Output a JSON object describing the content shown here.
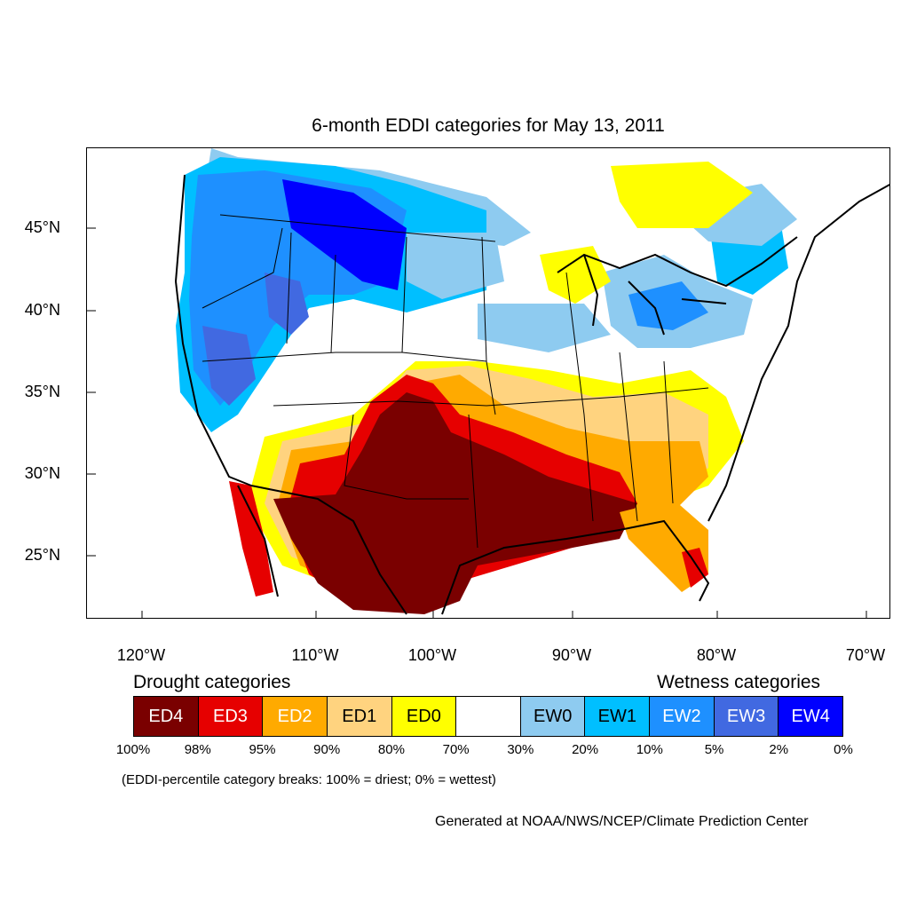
{
  "title": "6-month EDDI categories for May 13, 2011",
  "axes": {
    "lat_labels": [
      "45°N",
      "40°N",
      "35°N",
      "30°N",
      "25°N"
    ],
    "lon_labels": [
      "120°W",
      "110°W",
      "100°W",
      "90°W",
      "80°W",
      "70°W"
    ]
  },
  "legend": {
    "drought_heading": "Drought categories",
    "wetness_heading": "Wetness categories",
    "categories": [
      {
        "label": "ED4",
        "color": "#7a0000",
        "text_color": "#ffffff"
      },
      {
        "label": "ED3",
        "color": "#e60000",
        "text_color": "#ffffff"
      },
      {
        "label": "ED2",
        "color": "#ffaa00",
        "text_color": "#ffffff"
      },
      {
        "label": "ED1",
        "color": "#ffd37f",
        "text_color": "#000000"
      },
      {
        "label": "ED0",
        "color": "#ffff00",
        "text_color": "#000000"
      },
      {
        "label": "",
        "color": "#ffffff",
        "text_color": "#000000"
      },
      {
        "label": "EW0",
        "color": "#8ecbf0",
        "text_color": "#000000"
      },
      {
        "label": "EW1",
        "color": "#00bfff",
        "text_color": "#000000"
      },
      {
        "label": "EW2",
        "color": "#1e90ff",
        "text_color": "#ffffff"
      },
      {
        "label": "EW3",
        "color": "#4169e1",
        "text_color": "#ffffff"
      },
      {
        "label": "EW4",
        "color": "#0000ff",
        "text_color": "#ffffff"
      }
    ],
    "percent_breaks": [
      "100%",
      "98%",
      "95%",
      "90%",
      "80%",
      "70%",
      "30%",
      "20%",
      "10%",
      "5%",
      "2%",
      "0%"
    ]
  },
  "note": "(EDDI-percentile category breaks: 100% = driest; 0% = wettest)",
  "credit": "Generated at NOAA/NWS/NCEP/Climate Prediction Center"
}
